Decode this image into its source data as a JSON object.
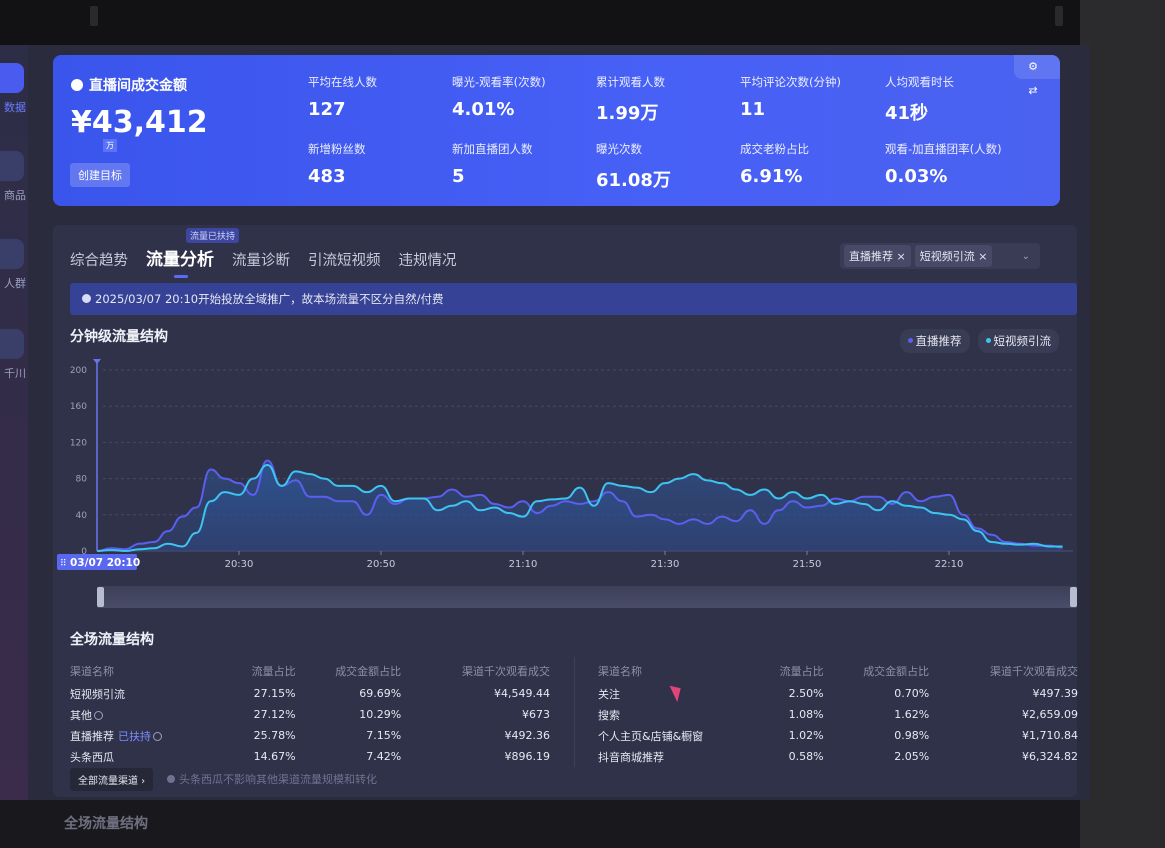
{
  "sidebar": {
    "items": [
      {
        "label": "数据",
        "icon": "trend-chart-icon",
        "active": true
      },
      {
        "label": "商品",
        "icon": "shopping-bag-icon"
      },
      {
        "label": "人群",
        "icon": "user-icon"
      },
      {
        "label": "千川",
        "icon": "megaphone-icon"
      }
    ]
  },
  "summary": {
    "title": "直播间成交金额",
    "value": "¥43,412",
    "unit": "万",
    "goal_button": "创建目标",
    "metrics": [
      {
        "label": "平均在线人数",
        "value": "127"
      },
      {
        "label": "曝光-观看率(次数)",
        "value": "4.01%"
      },
      {
        "label": "累计观看人数",
        "value": "1.99万"
      },
      {
        "label": "平均评论次数(分钟)",
        "value": "11"
      },
      {
        "label": "人均观看时长",
        "value": "41秒"
      },
      {
        "label": "新增粉丝数",
        "value": "483"
      },
      {
        "label": "新加直播团人数",
        "value": "5"
      },
      {
        "label": "曝光次数",
        "value": "61.08万"
      },
      {
        "label": "成交老粉占比",
        "value": "6.91%"
      },
      {
        "label": "观看-加直播团率(人数)",
        "value": "0.03%"
      }
    ],
    "tool_icons": "⚙ ⇄"
  },
  "tabs": {
    "badge": "流量已扶持",
    "items": [
      {
        "label": "综合趋势"
      },
      {
        "label": "流量分析",
        "active": true
      },
      {
        "label": "流量诊断"
      },
      {
        "label": "引流短视频"
      },
      {
        "label": "违规情况"
      }
    ]
  },
  "filter": {
    "chips": [
      "直播推荐 ×",
      "短视频引流 ×"
    ],
    "dropdown": "⌄"
  },
  "notice": "2025/03/07 20:10开始投放全域推广，故本场流量不区分自然/付费",
  "minute_chart_title": "分钟级流量结构",
  "colors": {
    "live_recommend": "#5b5ff0",
    "short_video": "#3ec4f0",
    "accent": "#4a5cf0"
  },
  "chart_data": {
    "type": "line",
    "x_start": "20:10",
    "x_end": "22:26",
    "x_step_minutes": 2,
    "xticks": [
      "20:30",
      "20:50",
      "21:10",
      "21:30",
      "21:50",
      "22:10"
    ],
    "yticks": [
      0,
      40,
      80,
      120,
      160,
      200
    ],
    "ylim": [
      0,
      200
    ],
    "grid": true,
    "legend": "top-right",
    "cursor_label": "03/07 20:10",
    "series": [
      {
        "name": "直播推荐",
        "values": [
          0,
          3,
          2,
          8,
          10,
          22,
          38,
          48,
          90,
          80,
          75,
          62,
          100,
          72,
          78,
          60,
          60,
          55,
          55,
          40,
          62,
          52,
          58,
          58,
          60,
          68,
          60,
          62,
          52,
          48,
          55,
          42,
          50,
          55,
          52,
          55,
          65,
          55,
          38,
          40,
          35,
          30,
          35,
          30,
          38,
          33,
          45,
          30,
          45,
          55,
          48,
          50,
          58,
          55,
          60,
          60,
          52,
          65,
          55,
          60,
          62,
          40,
          25,
          18,
          10,
          8,
          6,
          6,
          4
        ]
      },
      {
        "name": "短视频引流",
        "values": [
          0,
          1,
          0,
          2,
          3,
          8,
          5,
          20,
          55,
          65,
          62,
          80,
          95,
          72,
          88,
          85,
          80,
          72,
          72,
          65,
          72,
          55,
          58,
          58,
          45,
          50,
          55,
          45,
          48,
          42,
          38,
          55,
          57,
          58,
          70,
          50,
          75,
          72,
          70,
          65,
          75,
          80,
          85,
          78,
          75,
          68,
          62,
          68,
          58,
          65,
          58,
          62,
          52,
          55,
          52,
          45,
          55,
          50,
          48,
          42,
          40,
          35,
          22,
          10,
          8,
          7,
          8,
          5,
          5
        ]
      }
    ]
  },
  "overall": {
    "title": "全场流量结构",
    "headers": [
      "渠道名称",
      "流量占比",
      "成交金额占比",
      "渠道千次观看成交"
    ],
    "left_rows": [
      [
        "短视频引流",
        "27.15%",
        "69.69%",
        "¥4,549.44"
      ],
      [
        "其他",
        "27.12%",
        "10.29%",
        "¥673"
      ],
      [
        "直播推荐",
        "25.78%",
        "7.15%",
        "¥492.36"
      ],
      [
        "头条西瓜",
        "14.67%",
        "7.42%",
        "¥896.19"
      ]
    ],
    "supported_tag": "已扶持",
    "right_rows": [
      [
        "关注",
        "2.50%",
        "0.70%",
        "¥497.39"
      ],
      [
        "搜索",
        "1.08%",
        "1.62%",
        "¥2,659.09"
      ],
      [
        "个人主页&店铺&橱窗",
        "1.02%",
        "0.98%",
        "¥1,710.84"
      ],
      [
        "抖音商城推荐",
        "0.58%",
        "2.05%",
        "¥6,324.82"
      ]
    ],
    "all_channels_button": "全部流量渠道 ›",
    "hint": "头条西瓜不影响其他渠道流量规模和转化"
  },
  "below_title": "全场流量结构"
}
